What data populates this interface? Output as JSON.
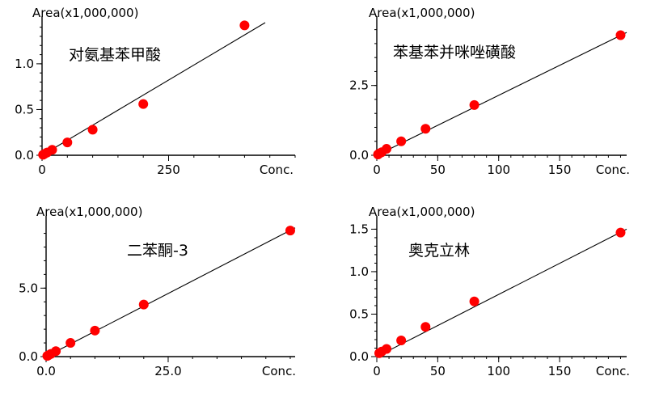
{
  "chart_data": [
    {
      "type": "scatter",
      "title": "对氨基苯甲酸",
      "ylabel": "Area(x1,000,000)",
      "xlabel": "Conc.",
      "xlim": [
        0,
        500
      ],
      "ylim": [
        0,
        1.45
      ],
      "x_ticks": [
        "0",
        "250",
        "Conc."
      ],
      "y_ticks": [
        "0.0",
        "0.5",
        "1.0"
      ],
      "series": [
        {
          "x": [
            2,
            5,
            10,
            20,
            50,
            100,
            200,
            400
          ],
          "y": [
            0.006,
            0.015,
            0.03,
            0.06,
            0.14,
            0.28,
            0.56,
            1.42
          ]
        }
      ],
      "fit_line": [
        [
          0,
          0
        ],
        [
          450,
          1.48
        ]
      ]
    },
    {
      "type": "scatter",
      "title": "苯基苯并咪唑磺酸",
      "ylabel": "Area(x1,000,000)",
      "xlabel": "Conc.",
      "xlim": [
        0,
        205
      ],
      "ylim": [
        0,
        4.75
      ],
      "x_ticks": [
        "0",
        "50",
        "100",
        "150",
        "Conc."
      ],
      "y_ticks": [
        "0.0",
        "2.5"
      ],
      "series": [
        {
          "x": [
            1,
            2,
            4,
            8,
            20,
            40,
            80,
            200
          ],
          "y": [
            0.03,
            0.06,
            0.11,
            0.23,
            0.5,
            0.95,
            1.8,
            4.3
          ]
        }
      ],
      "fit_line": [
        [
          0,
          0
        ],
        [
          205,
          4.4
        ]
      ]
    },
    {
      "type": "scatter",
      "title": "二苯酮-3",
      "ylabel": "Area(x1,000,000)",
      "xlabel": "Conc.",
      "xlim": [
        0,
        51
      ],
      "ylim": [
        0,
        9.8
      ],
      "x_ticks": [
        "0.0",
        "25.0",
        "Conc."
      ],
      "y_ticks": [
        "0.0",
        "5.0"
      ],
      "series": [
        {
          "x": [
            0.25,
            0.5,
            1,
            2,
            5,
            10,
            20,
            50
          ],
          "y": [
            0.05,
            0.1,
            0.2,
            0.4,
            1.0,
            1.9,
            3.8,
            9.2
          ]
        }
      ],
      "fit_line": [
        [
          0,
          0
        ],
        [
          51,
          9.4
        ]
      ]
    },
    {
      "type": "scatter",
      "title": "奥克立林",
      "ylabel": "Area(x1,000,000)",
      "xlabel": "Conc.",
      "xlim": [
        0,
        205
      ],
      "ylim": [
        0,
        1.58
      ],
      "x_ticks": [
        "0",
        "50",
        "100",
        "150",
        "Conc."
      ],
      "y_ticks": [
        "0.0",
        "0.5",
        "1.0",
        "1.5"
      ],
      "series": [
        {
          "x": [
            2,
            4,
            8,
            20,
            40,
            80,
            200
          ],
          "y": [
            0.04,
            0.06,
            0.09,
            0.19,
            0.35,
            0.65,
            1.46
          ]
        }
      ],
      "fit_line": [
        [
          0,
          0
        ],
        [
          205,
          1.5
        ]
      ]
    }
  ]
}
